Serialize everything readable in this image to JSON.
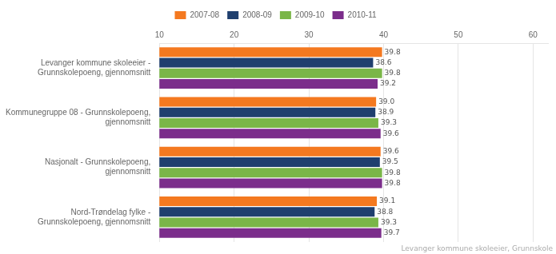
{
  "chart_data": {
    "type": "bar",
    "orientation": "horizontal",
    "categories": [
      "Levanger kommune skoleeier -\nGrunnskolepoeng, gjennomsnitt",
      "Kommunegruppe 08 - Grunnskolepoeng,\ngjennomsnitt",
      "Nasjonalt - Grunnskolepoeng,\ngjennomsnitt",
      "Nord-Trøndelag fylke -\nGrunnskolepoeng, gjennomsnitt"
    ],
    "series": [
      {
        "name": "2007-08",
        "color": "#F47920",
        "values": [
          39.8,
          39.0,
          39.6,
          39.1
        ],
        "value_labels": [
          "39.8",
          "39.0",
          "39.6",
          "39.1"
        ]
      },
      {
        "name": "2008-09",
        "color": "#1F3F6E",
        "values": [
          38.6,
          38.9,
          39.5,
          38.8
        ],
        "value_labels": [
          "38.6",
          "38.9",
          "39.5",
          "38.8"
        ]
      },
      {
        "name": "2009-10",
        "color": "#7AB648",
        "values": [
          39.8,
          39.3,
          39.8,
          39.3
        ],
        "value_labels": [
          "39.8",
          "39.3",
          "39.8",
          "39.3"
        ]
      },
      {
        "name": "2010-11",
        "color": "#7B2D8B",
        "values": [
          39.2,
          39.6,
          39.8,
          39.7
        ],
        "value_labels": [
          "39.2",
          "39.6",
          "39.8",
          "39.7"
        ]
      }
    ],
    "xlim": [
      10,
      62
    ],
    "xticks": [
      10,
      20,
      30,
      40,
      50,
      60
    ],
    "grid": true,
    "legend": "top",
    "data_labels": true,
    "annotations": [
      "Levanger kommune skoleeier, Grunnskole"
    ]
  }
}
